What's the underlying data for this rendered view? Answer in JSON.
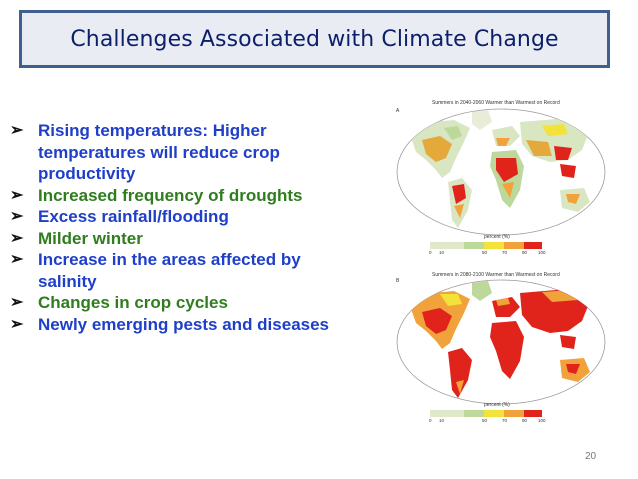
{
  "slide": {
    "title": "Challenges Associated with Climate Change",
    "bullets": [
      {
        "text": "Rising temperatures:  Higher temperatures will reduce crop productivity",
        "color": "#1f3fc8"
      },
      {
        "text": "Increased frequency of droughts",
        "color": "#2f7d1f"
      },
      {
        "text": "Excess rainfall/flooding",
        "color": "#1f3fc8"
      },
      {
        "text": "Milder winter",
        "color": "#2f7d1f"
      },
      {
        "text": "Increase in the areas affected by salinity",
        "color": "#1f3fc8"
      },
      {
        "text": "Changes in crop cycles",
        "color": "#2f7d1f"
      },
      {
        "text": "Newly emerging pests and diseases",
        "color": "#1f3fc8"
      }
    ],
    "bullet_icon": "arrow-bullet-icon",
    "page_number": "20"
  },
  "figure": {
    "panels": [
      {
        "label": "A",
        "title": "Summers in 2040-2060 Warmer than Warmest on Record",
        "scale_title": "percent (%)",
        "scale_labels": [
          "0",
          "10",
          "50",
          "70",
          "90",
          "100"
        ]
      },
      {
        "label": "B",
        "title": "Summers in 2080-2100 Warmer than Warmest on Record",
        "scale_title": "percent (%)",
        "scale_labels": [
          "0",
          "10",
          "50",
          "70",
          "90",
          "100"
        ]
      }
    ],
    "legend_colors": [
      "#dfe8c8",
      "#bcd89a",
      "#f2e23a",
      "#f2a23a",
      "#e0241c"
    ]
  }
}
